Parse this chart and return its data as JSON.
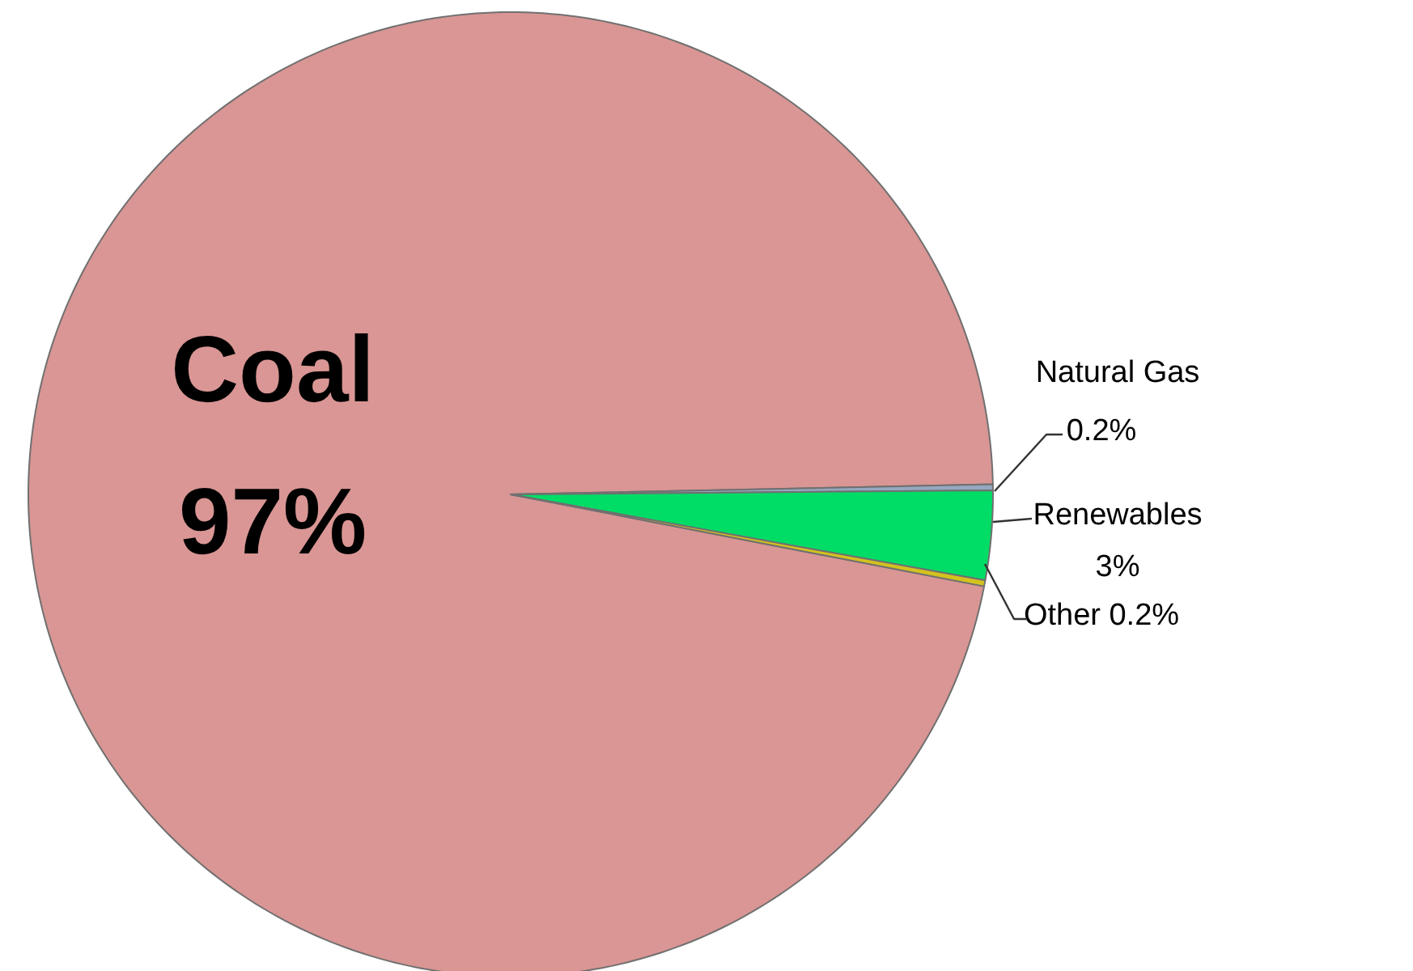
{
  "chart_data": {
    "type": "pie",
    "categories": [
      "Coal",
      "Natural Gas",
      "Renewables",
      "Other"
    ],
    "values": [
      97,
      0.2,
      3,
      0.2
    ],
    "value_labels": [
      "97%",
      "0.2%",
      "3%",
      "0.2%"
    ],
    "colors": [
      "#d99694",
      "#95a8c0",
      "#00dd66",
      "#d4c21e"
    ]
  }
}
